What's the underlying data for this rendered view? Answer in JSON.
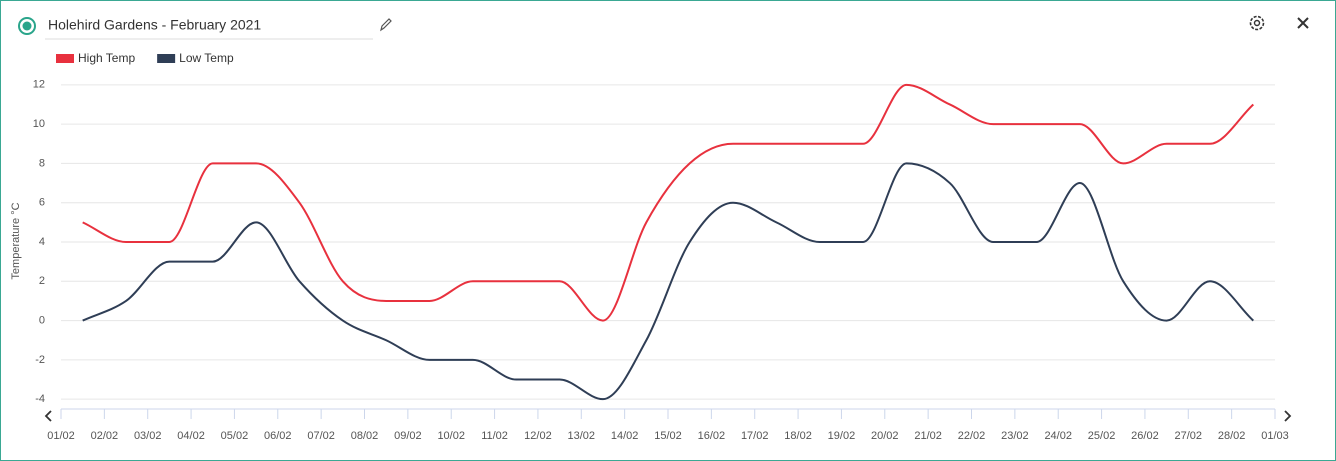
{
  "chart_data": {
    "type": "line",
    "title": "Holehird Gardens - February 2021",
    "y_label": "Temperature °C",
    "x": [
      0.5,
      1.5,
      2.5,
      3.5,
      4.5,
      5.5,
      6.5,
      7.5,
      8.5,
      9.5,
      10.5,
      11.5,
      12.5,
      13.5,
      14.5,
      15.5,
      16.5,
      17.5,
      18.5,
      19.5,
      20.5,
      21.5,
      22.5,
      23.5,
      24.5,
      25.5,
      26.5,
      27.5
    ],
    "series": [
      {
        "name": "High Temp",
        "color": "#e8313e",
        "values": [
          5,
          4,
          4,
          8,
          8,
          6,
          2,
          1,
          1,
          2,
          2,
          2,
          0,
          5,
          8,
          9,
          9,
          9,
          9,
          12,
          11,
          10,
          10,
          10,
          8,
          9,
          9,
          11
        ]
      },
      {
        "name": "Low Temp",
        "color": "#2f3e56",
        "values": [
          0,
          1,
          3,
          3,
          5,
          2,
          0,
          -1,
          -2,
          -2,
          -3,
          -3,
          -4,
          -1,
          4,
          6,
          5,
          4,
          4,
          8,
          7,
          4,
          4,
          7,
          2,
          0,
          2,
          0
        ]
      }
    ],
    "xlim": [
      0,
      28
    ],
    "xticks": [
      {
        "value": 0,
        "label": "01/02"
      },
      {
        "value": 1,
        "label": "02/02"
      },
      {
        "value": 2,
        "label": "03/02"
      },
      {
        "value": 3,
        "label": "04/02"
      },
      {
        "value": 4,
        "label": "05/02"
      },
      {
        "value": 5,
        "label": "06/02"
      },
      {
        "value": 6,
        "label": "07/02"
      },
      {
        "value": 7,
        "label": "08/02"
      },
      {
        "value": 8,
        "label": "09/02"
      },
      {
        "value": 9,
        "label": "10/02"
      },
      {
        "value": 10,
        "label": "11/02"
      },
      {
        "value": 11,
        "label": "12/02"
      },
      {
        "value": 12,
        "label": "13/02"
      },
      {
        "value": 13,
        "label": "14/02"
      },
      {
        "value": 14,
        "label": "15/02"
      },
      {
        "value": 15,
        "label": "16/02"
      },
      {
        "value": 16,
        "label": "17/02"
      },
      {
        "value": 17,
        "label": "18/02"
      },
      {
        "value": 18,
        "label": "19/02"
      },
      {
        "value": 19,
        "label": "20/02"
      },
      {
        "value": 20,
        "label": "21/02"
      },
      {
        "value": 21,
        "label": "22/02"
      },
      {
        "value": 22,
        "label": "23/02"
      },
      {
        "value": 23,
        "label": "24/02"
      },
      {
        "value": 24,
        "label": "25/02"
      },
      {
        "value": 25,
        "label": "26/02"
      },
      {
        "value": 26,
        "label": "27/02"
      },
      {
        "value": 27,
        "label": "28/02"
      },
      {
        "value": 28,
        "label": "01/03"
      }
    ],
    "ylim": [
      -4.5,
      12.5
    ],
    "yticks": [
      -4,
      -2,
      0,
      2,
      4,
      6,
      8,
      10,
      12
    ],
    "grid": true
  }
}
